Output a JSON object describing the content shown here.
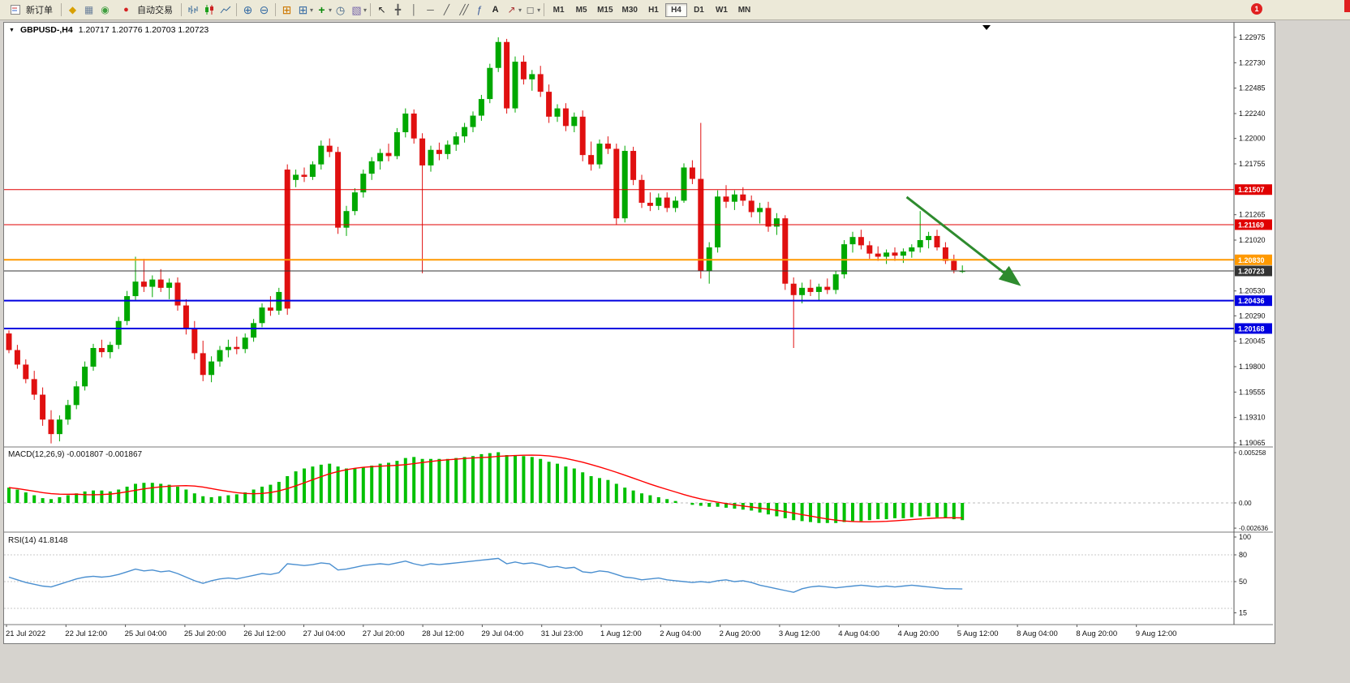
{
  "toolbar": {
    "new_order_label": "新订单",
    "autotrading_label": "自动交易",
    "timeframes": [
      "M1",
      "M5",
      "M15",
      "M30",
      "H1",
      "H4",
      "D1",
      "W1",
      "MN"
    ],
    "active_timeframe": "H4",
    "notification_count": "1",
    "icons": {
      "collapse": "▼",
      "market_watch": "◆",
      "data_window": "▦",
      "navigator": "◉",
      "autotrading": "●",
      "zoom_in": "⊕",
      "zoom_out": "⊖",
      "tile_windows": "⊞",
      "new_chart": "⊞",
      "indicators": "+",
      "clock": "◷",
      "template": "▧",
      "cursor": "↖",
      "crosshair": "╋",
      "vline": "│",
      "hline": "─",
      "trendline": "╱",
      "channel": "╱╱",
      "fibonacci": "ƒ",
      "text_tool": "A",
      "arrows_tool": "↗",
      "shapes_tool": "◻",
      "dropdown": "▾"
    }
  },
  "chart_header": {
    "symbol": "GBPUSD-,H4",
    "ohlc": "1.20717 1.20776 1.20703 1.20723"
  },
  "chart_data": {
    "type": "candlestick",
    "symbol": "GBPUSD",
    "timeframe": "H4",
    "colors": {
      "bull": "#00a800",
      "bear": "#e01010"
    },
    "price_axis_ticks": [
      "1.22975",
      "1.22730",
      "1.22485",
      "1.22240",
      "1.22000",
      "1.21755",
      "1.21265",
      "1.21020",
      "1.20530",
      "1.20290",
      "1.20045",
      "1.19800",
      "1.19555",
      "1.19310",
      "1.19065"
    ],
    "hlines": [
      {
        "price": 1.21507,
        "color": "#e00000",
        "width": 1,
        "label": "1.21507"
      },
      {
        "price": 1.21169,
        "color": "#e00000",
        "width": 1,
        "label": "1.21169"
      },
      {
        "price": 1.2083,
        "color": "#ff9900",
        "width": 2,
        "label": "1.20830"
      },
      {
        "price": 1.20723,
        "color": "#333333",
        "width": 1,
        "label": "1.20723"
      },
      {
        "price": 1.20436,
        "color": "#0000e0",
        "width": 2,
        "label": "1.20436"
      },
      {
        "price": 1.20168,
        "color": "#0000e0",
        "width": 2,
        "label": "1.20168"
      }
    ],
    "arrow_annotation": {
      "color": "#2e8b2e",
      "from": {
        "index": 106.4,
        "price": 1.21435
      },
      "to": {
        "index": 119.5,
        "price": 1.20606
      }
    },
    "time_labels": [
      "21 Jul 2022",
      "22 Jul 12:00",
      "25 Jul 04:00",
      "25 Jul 20:00",
      "26 Jul 12:00",
      "27 Jul 04:00",
      "27 Jul 20:00",
      "28 Jul 12:00",
      "29 Jul 04:00",
      "31 Jul 23:00",
      "1 Aug 12:00",
      "2 Aug 04:00",
      "2 Aug 20:00",
      "3 Aug 12:00",
      "4 Aug 04:00",
      "4 Aug 20:00",
      "5 Aug 12:00",
      "8 Aug 04:00",
      "8 Aug 20:00",
      "9 Aug 12:00"
    ],
    "candles": [
      [
        1.2012,
        1.2015,
        1.1993,
        1.1996
      ],
      [
        1.1996,
        1.2001,
        1.1978,
        1.1982
      ],
      [
        1.1982,
        1.1987,
        1.1964,
        1.1968
      ],
      [
        1.1968,
        1.1976,
        1.1948,
        1.1953
      ],
      [
        1.1953,
        1.196,
        1.1923,
        1.1929
      ],
      [
        1.1929,
        1.1938,
        1.1906,
        1.1915
      ],
      [
        1.1915,
        1.1933,
        1.1908,
        1.1929
      ],
      [
        1.1929,
        1.1948,
        1.1924,
        1.1943
      ],
      [
        1.1943,
        1.1966,
        1.1939,
        1.1961
      ],
      [
        1.1961,
        1.1985,
        1.1957,
        1.198
      ],
      [
        1.198,
        1.2002,
        1.1976,
        1.1998
      ],
      [
        1.1998,
        1.2006,
        1.1989,
        1.1994
      ],
      [
        1.1994,
        1.2004,
        1.1988,
        1.2001
      ],
      [
        1.2001,
        1.2028,
        1.1997,
        1.2024
      ],
      [
        1.2024,
        1.2053,
        1.202,
        1.2048
      ],
      [
        1.2048,
        1.2086,
        1.2044,
        1.2062
      ],
      [
        1.2062,
        1.2084,
        1.2052,
        1.2057
      ],
      [
        1.2057,
        1.2068,
        1.2047,
        1.2064
      ],
      [
        1.2064,
        1.2074,
        1.2052,
        1.2056
      ],
      [
        1.2056,
        1.2065,
        1.2045,
        1.2061
      ],
      [
        1.2061,
        1.2066,
        1.2034,
        1.2039
      ],
      [
        1.2039,
        1.2045,
        1.2011,
        1.2016
      ],
      [
        1.2016,
        1.2024,
        1.1987,
        1.1993
      ],
      [
        1.1993,
        1.2005,
        1.1966,
        1.1972
      ],
      [
        1.1972,
        1.199,
        1.1965,
        1.1985
      ],
      [
        1.1985,
        1.2,
        1.198,
        1.1996
      ],
      [
        1.1996,
        1.2006,
        1.1989,
        1.1999
      ],
      [
        1.1999,
        1.2009,
        1.1992,
        1.1997
      ],
      [
        1.1997,
        1.2012,
        1.1993,
        1.2008
      ],
      [
        1.2008,
        1.2026,
        1.2004,
        1.2022
      ],
      [
        1.2022,
        1.2041,
        1.2018,
        1.2037
      ],
      [
        1.2037,
        1.2048,
        1.2029,
        1.2034
      ],
      [
        1.2034,
        1.2056,
        1.203,
        1.2052
      ],
      [
        1.217,
        1.2175,
        1.203,
        1.2036
      ],
      [
        1.216,
        1.217,
        1.2153,
        1.2165
      ],
      [
        1.2165,
        1.2172,
        1.2158,
        1.2163
      ],
      [
        1.2163,
        1.2178,
        1.216,
        1.2175
      ],
      [
        1.2175,
        1.2198,
        1.217,
        1.2193
      ],
      [
        1.2193,
        1.22,
        1.2182,
        1.2187
      ],
      [
        1.2187,
        1.2192,
        1.2108,
        1.2114
      ],
      [
        1.2114,
        1.2135,
        1.2106,
        1.213
      ],
      [
        1.213,
        1.2152,
        1.2126,
        1.2148
      ],
      [
        1.2148,
        1.217,
        1.2143,
        1.2166
      ],
      [
        1.2166,
        1.2182,
        1.216,
        1.2178
      ],
      [
        1.2178,
        1.219,
        1.217,
        1.2186
      ],
      [
        1.2186,
        1.2195,
        1.2178,
        1.2183
      ],
      [
        1.2183,
        1.221,
        1.218,
        1.2206
      ],
      [
        1.2206,
        1.2229,
        1.2201,
        1.2224
      ],
      [
        1.2224,
        1.2228,
        1.2195,
        1.22
      ],
      [
        1.22,
        1.2205,
        1.207,
        1.2174
      ],
      [
        1.2174,
        1.2193,
        1.2168,
        1.2189
      ],
      [
        1.2189,
        1.2196,
        1.2179,
        1.2185
      ],
      [
        1.2185,
        1.2198,
        1.218,
        1.2194
      ],
      [
        1.2194,
        1.2206,
        1.2188,
        1.2202
      ],
      [
        1.2202,
        1.2215,
        1.2196,
        1.2211
      ],
      [
        1.2211,
        1.2226,
        1.2206,
        1.2222
      ],
      [
        1.2222,
        1.2242,
        1.2217,
        1.2238
      ],
      [
        1.2238,
        1.2272,
        1.2234,
        1.2268
      ],
      [
        1.2268,
        1.22975,
        1.2264,
        1.2293
      ],
      [
        1.2293,
        1.2296,
        1.2224,
        1.2229
      ],
      [
        1.2229,
        1.2279,
        1.2225,
        1.2274
      ],
      [
        1.2274,
        1.228,
        1.2252,
        1.2257
      ],
      [
        1.2257,
        1.2266,
        1.2246,
        1.2262
      ],
      [
        1.2262,
        1.227,
        1.224,
        1.2245
      ],
      [
        1.2245,
        1.2252,
        1.2215,
        1.2221
      ],
      [
        1.2221,
        1.2233,
        1.2216,
        1.2229
      ],
      [
        1.2229,
        1.2234,
        1.2207,
        1.2212
      ],
      [
        1.2212,
        1.2225,
        1.2206,
        1.2221
      ],
      [
        1.2221,
        1.2227,
        1.2178,
        1.2184
      ],
      [
        1.2184,
        1.2197,
        1.2169,
        1.2175
      ],
      [
        1.2175,
        1.2199,
        1.2171,
        1.2195
      ],
      [
        1.2195,
        1.2202,
        1.2185,
        1.219
      ],
      [
        1.219,
        1.2195,
        1.2117,
        1.2123
      ],
      [
        1.2123,
        1.2193,
        1.2119,
        1.2188
      ],
      [
        1.2188,
        1.2192,
        1.2155,
        1.216
      ],
      [
        1.216,
        1.2165,
        1.2133,
        1.2138
      ],
      [
        1.2138,
        1.2148,
        1.213,
        1.2135
      ],
      [
        1.2135,
        1.2147,
        1.2131,
        1.2143
      ],
      [
        1.2143,
        1.2148,
        1.2129,
        1.2133
      ],
      [
        1.2133,
        1.2144,
        1.2129,
        1.214
      ],
      [
        1.214,
        1.2176,
        1.2138,
        1.2172
      ],
      [
        1.2172,
        1.2179,
        1.2156,
        1.2161
      ],
      [
        1.2161,
        1.2215,
        1.2065,
        1.2072
      ],
      [
        1.2072,
        1.21,
        1.206,
        1.2095
      ],
      [
        1.2095,
        1.215,
        1.209,
        1.2144
      ],
      [
        1.2144,
        1.2155,
        1.2133,
        1.2139
      ],
      [
        1.2139,
        1.215,
        1.2131,
        1.2146
      ],
      [
        1.2146,
        1.2153,
        1.2135,
        1.214
      ],
      [
        1.214,
        1.2145,
        1.2124,
        1.2129
      ],
      [
        1.2129,
        1.2138,
        1.2118,
        1.2133
      ],
      [
        1.2133,
        1.2139,
        1.211,
        1.2115
      ],
      [
        1.2115,
        1.2128,
        1.2107,
        1.2123
      ],
      [
        1.2123,
        1.2126,
        1.2054,
        1.206
      ],
      [
        1.206,
        1.2066,
        1.1998,
        1.2049
      ],
      [
        1.2049,
        1.2061,
        1.2041,
        1.2056
      ],
      [
        1.2056,
        1.2064,
        1.2048,
        1.2052
      ],
      [
        1.2052,
        1.206,
        1.2044,
        1.2057
      ],
      [
        1.2057,
        1.2065,
        1.205,
        1.2054
      ],
      [
        1.2054,
        1.2072,
        1.205,
        1.2069
      ],
      [
        1.2069,
        1.2102,
        1.2065,
        1.2098
      ],
      [
        1.2098,
        1.211,
        1.209,
        1.2105
      ],
      [
        1.2105,
        1.2112,
        1.2093,
        1.2097
      ],
      [
        1.2097,
        1.2101,
        1.2084,
        1.2089
      ],
      [
        1.2089,
        1.2096,
        1.2082,
        1.2086
      ],
      [
        1.2086,
        1.2093,
        1.2079,
        1.209
      ],
      [
        1.209,
        1.2095,
        1.2082,
        1.2087
      ],
      [
        1.2087,
        1.2094,
        1.208,
        1.2091
      ],
      [
        1.2091,
        1.2098,
        1.2085,
        1.2095
      ],
      [
        1.2095,
        1.213,
        1.209,
        1.2102
      ],
      [
        1.2102,
        1.211,
        1.2094,
        1.2106
      ],
      [
        1.2106,
        1.2112,
        1.2092,
        1.2095
      ],
      [
        1.2095,
        1.21,
        1.2079,
        1.2082
      ],
      [
        1.2082,
        1.2088,
        1.207,
        1.2073
      ],
      [
        1.20717,
        1.20776,
        1.20703,
        1.20723
      ]
    ],
    "macd": {
      "label": "MACD(12,26,9)",
      "values_label": "-0.001807 -0.001867",
      "hist_color": "#00c000",
      "signal_color": "#ff0000",
      "axis_ticks": [
        "0.005258",
        "0.00",
        "-0.002636"
      ],
      "max": 0.005258,
      "min": -0.002636,
      "histogram": [
        0.0016,
        0.0014,
        0.0011,
        0.0008,
        0.0005,
        0.0004,
        0.0006,
        0.0008,
        0.001,
        0.0012,
        0.0013,
        0.0013,
        0.0012,
        0.0014,
        0.0017,
        0.002,
        0.0021,
        0.0021,
        0.002,
        0.0019,
        0.0017,
        0.0014,
        0.001,
        0.0007,
        0.0006,
        0.0007,
        0.0008,
        0.0009,
        0.0011,
        0.0014,
        0.0017,
        0.0019,
        0.0022,
        0.0028,
        0.0033,
        0.0036,
        0.0038,
        0.004,
        0.0041,
        0.0038,
        0.0036,
        0.0036,
        0.0037,
        0.0039,
        0.0041,
        0.0042,
        0.0044,
        0.0047,
        0.0048,
        0.0046,
        0.0046,
        0.0046,
        0.0046,
        0.0047,
        0.0048,
        0.0049,
        0.0051,
        0.0052,
        0.0053,
        0.005,
        0.005,
        0.0049,
        0.0048,
        0.0046,
        0.0043,
        0.0041,
        0.0038,
        0.0036,
        0.0032,
        0.0028,
        0.0026,
        0.0024,
        0.002,
        0.0016,
        0.0013,
        0.001,
        0.0008,
        0.0006,
        0.0004,
        0.0002,
        0.0,
        -0.0002,
        -0.0003,
        -0.0004,
        -0.0004,
        -0.0005,
        -0.0006,
        -0.0007,
        -0.0008,
        -0.001,
        -0.0012,
        -0.0014,
        -0.0016,
        -0.0018,
        -0.0019,
        -0.002,
        -0.0021,
        -0.0021,
        -0.0021,
        -0.002,
        -0.0019,
        -0.0019,
        -0.0018,
        -0.0017,
        -0.0017,
        -0.0016,
        -0.0016,
        -0.0015,
        -0.0014,
        -0.0014,
        -0.0015,
        -0.0016,
        -0.0017,
        -0.0018
      ]
    },
    "rsi": {
      "label": "RSI(14)",
      "value_label": "41.8148",
      "line_color": "#4a8fd0",
      "axis_ticks": [
        "100",
        "80",
        "50",
        "15"
      ],
      "levels": [
        80,
        50,
        20
      ],
      "values": [
        55,
        52,
        49,
        47,
        45,
        44,
        47,
        50,
        53,
        55,
        56,
        55,
        56,
        58,
        61,
        64,
        62,
        63,
        61,
        62,
        59,
        55,
        51,
        48,
        51,
        53,
        54,
        53,
        55,
        57,
        59,
        58,
        60,
        70,
        69,
        68,
        69,
        71,
        70,
        63,
        64,
        66,
        68,
        69,
        70,
        69,
        71,
        73,
        70,
        68,
        70,
        69,
        70,
        71,
        72,
        73,
        74,
        75,
        76,
        70,
        72,
        70,
        71,
        69,
        66,
        67,
        65,
        66,
        61,
        60,
        62,
        61,
        58,
        55,
        54,
        52,
        53,
        54,
        52,
        51,
        50,
        49,
        50,
        49,
        51,
        52,
        50,
        51,
        49,
        46,
        44,
        42,
        40,
        38,
        42,
        44,
        45,
        44,
        43,
        44,
        45,
        46,
        45,
        44,
        45,
        44,
        45,
        46,
        45,
        44,
        43,
        42,
        42,
        41.8
      ]
    }
  }
}
